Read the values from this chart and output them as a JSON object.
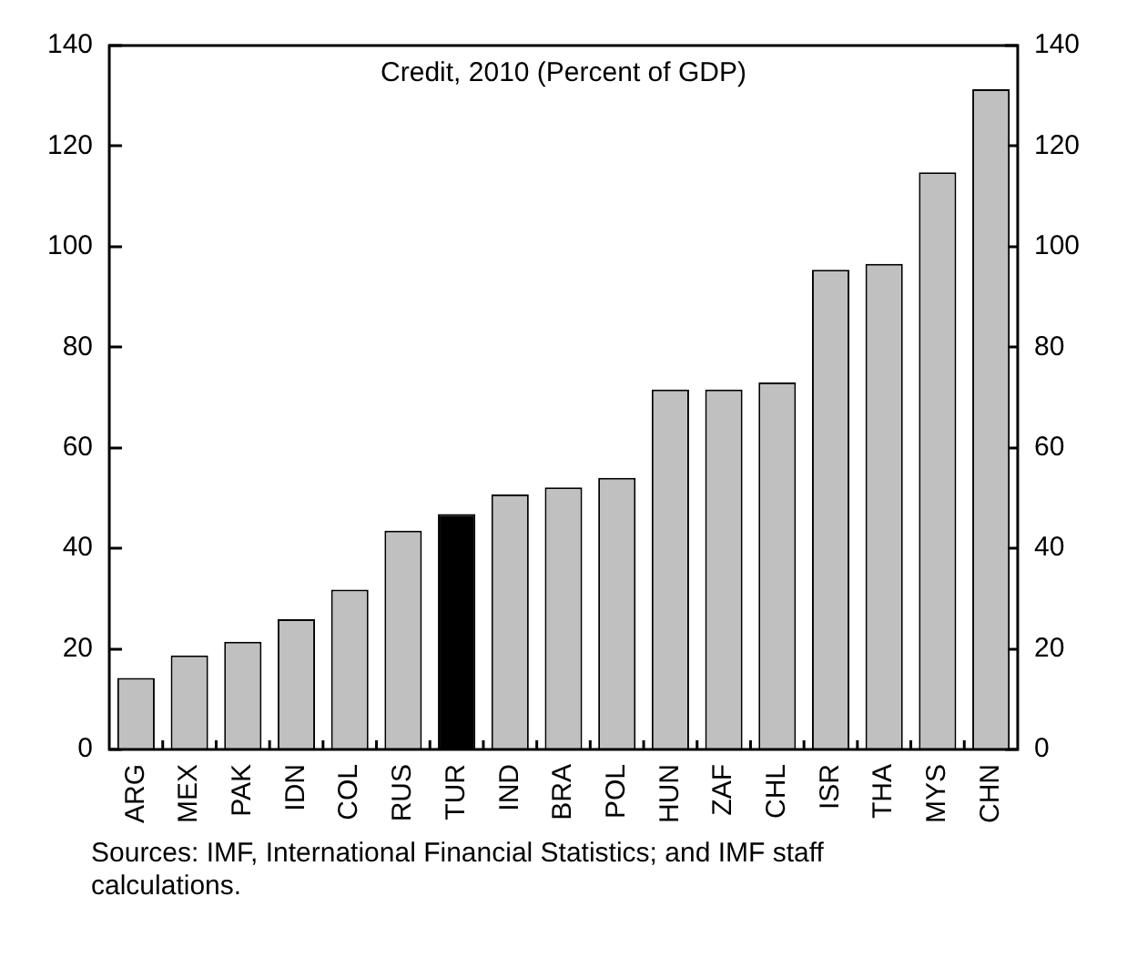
{
  "chart_data": {
    "type": "bar",
    "title": "Credit, 2010 (Percent of GDP)",
    "categories": [
      "ARG",
      "MEX",
      "PAK",
      "IDN",
      "COL",
      "RUS",
      "TUR",
      "IND",
      "BRA",
      "POL",
      "HUN",
      "ZAF",
      "CHL",
      "ISR",
      "THA",
      "MYS",
      "CHN"
    ],
    "values": [
      14.2,
      18.7,
      21.4,
      25.9,
      31.8,
      43.5,
      46.8,
      50.7,
      52.1,
      54,
      71.6,
      71.6,
      73,
      95.4,
      96.6,
      114.8,
      131.3
    ],
    "colors": [
      "#c0c0c0",
      "#c0c0c0",
      "#c0c0c0",
      "#c0c0c0",
      "#c0c0c0",
      "#c0c0c0",
      "#000000",
      "#c0c0c0",
      "#c0c0c0",
      "#c0c0c0",
      "#c0c0c0",
      "#c0c0c0",
      "#c0c0c0",
      "#c0c0c0",
      "#c0c0c0",
      "#c0c0c0",
      "#c0c0c0"
    ],
    "ylim": [
      0,
      140
    ],
    "yticks": [
      0,
      20,
      40,
      60,
      80,
      100,
      120,
      140
    ],
    "y2lim": [
      0,
      140
    ],
    "y2ticks": [
      0,
      20,
      40,
      60,
      80,
      100,
      120,
      140
    ],
    "grid": false,
    "legend": false,
    "annotations": [
      "Sources: IMF, International Financial Statistics; and IMF staff calculations."
    ]
  }
}
